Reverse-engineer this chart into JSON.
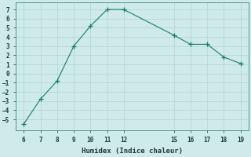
{
  "x_full": [
    6,
    7,
    8,
    9,
    10,
    11,
    12,
    15,
    16,
    17,
    18,
    19
  ],
  "y_full": [
    -5.5,
    -2.8,
    -0.8,
    3.0,
    5.2,
    7.0,
    7.0,
    4.2,
    3.2,
    3.2,
    1.8,
    1.1
  ],
  "xlabel": "Humidex (Indice chaleur)",
  "xlim": [
    5.5,
    19.5
  ],
  "ylim": [
    -6.2,
    7.8
  ],
  "yticks": [
    -5,
    -4,
    -3,
    -2,
    -1,
    0,
    1,
    2,
    3,
    4,
    5,
    6,
    7
  ],
  "xticks": [
    6,
    7,
    8,
    9,
    10,
    11,
    12,
    15,
    16,
    17,
    18,
    19
  ],
  "bg_color": "#ceeaea",
  "grid_color": "#b8d8d8",
  "line_color": "#1a7a6e",
  "marker_color": "#1a7a6e"
}
